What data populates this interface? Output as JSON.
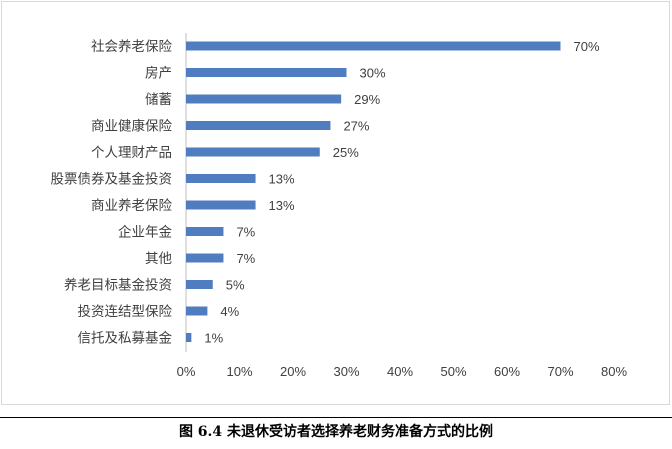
{
  "chart_data": {
    "type": "bar",
    "orientation": "horizontal",
    "categories": [
      "社会养老保险",
      "房产",
      "储蓄",
      "商业健康保险",
      "个人理财产品",
      "股票债券及基金投资",
      "商业养老保险",
      "企业年金",
      "其他",
      "养老目标基金投资",
      "投资连结型保险",
      "信托及私募基金"
    ],
    "values": [
      70,
      30,
      29,
      27,
      25,
      13,
      13,
      7,
      7,
      5,
      4,
      1
    ],
    "value_labels": [
      "70%",
      "30%",
      "29%",
      "27%",
      "25%",
      "13%",
      "13%",
      "7%",
      "7%",
      "5%",
      "4%",
      "1%"
    ],
    "xlim": [
      0,
      80
    ],
    "xticks": [
      "0%",
      "10%",
      "20%",
      "30%",
      "40%",
      "50%",
      "60%",
      "70%",
      "80%"
    ],
    "grid": false,
    "bar_color": "#4f7dbf"
  },
  "caption": "图 6.4  未退休受访者选择养老财务准备方式的比例"
}
